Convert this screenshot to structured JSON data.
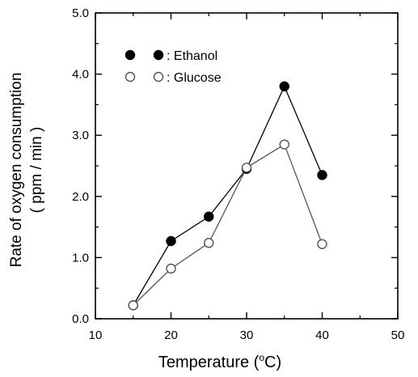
{
  "chart_data": {
    "type": "line",
    "title": "",
    "xlabel_main": "Temperature (",
    "xlabel_unit": "C)",
    "xlabel_degree": "o",
    "ylabel_line1": "Rate of oxygen consumption",
    "ylabel_line2": "( ppm / min )",
    "xlim": [
      10,
      50
    ],
    "ylim": [
      0.0,
      5.0
    ],
    "x_ticks": [
      10,
      20,
      30,
      40,
      50
    ],
    "y_ticks": [
      0.0,
      1.0,
      2.0,
      3.0,
      4.0,
      5.0
    ],
    "x_tick_labels": [
      "10",
      "20",
      "30",
      "40",
      "50"
    ],
    "y_tick_labels": [
      "0.0",
      "1.0",
      "2.0",
      "3.0",
      "4.0",
      "5.0"
    ],
    "grid": false,
    "legend_position": "top-left",
    "series": [
      {
        "name": "Ethanol",
        "legend_label": ": Ethanol",
        "marker": "filled-circle",
        "color": "#000000",
        "x": [
          15,
          20,
          25,
          30,
          35,
          40
        ],
        "y": [
          0.22,
          1.27,
          1.67,
          2.45,
          3.8,
          2.35
        ]
      },
      {
        "name": "Glucose",
        "legend_label": ": Glucose",
        "marker": "open-circle",
        "color": "#555555",
        "x": [
          15,
          20,
          25,
          30,
          35,
          40
        ],
        "y": [
          0.22,
          0.82,
          1.24,
          2.47,
          2.85,
          1.22
        ]
      }
    ]
  }
}
